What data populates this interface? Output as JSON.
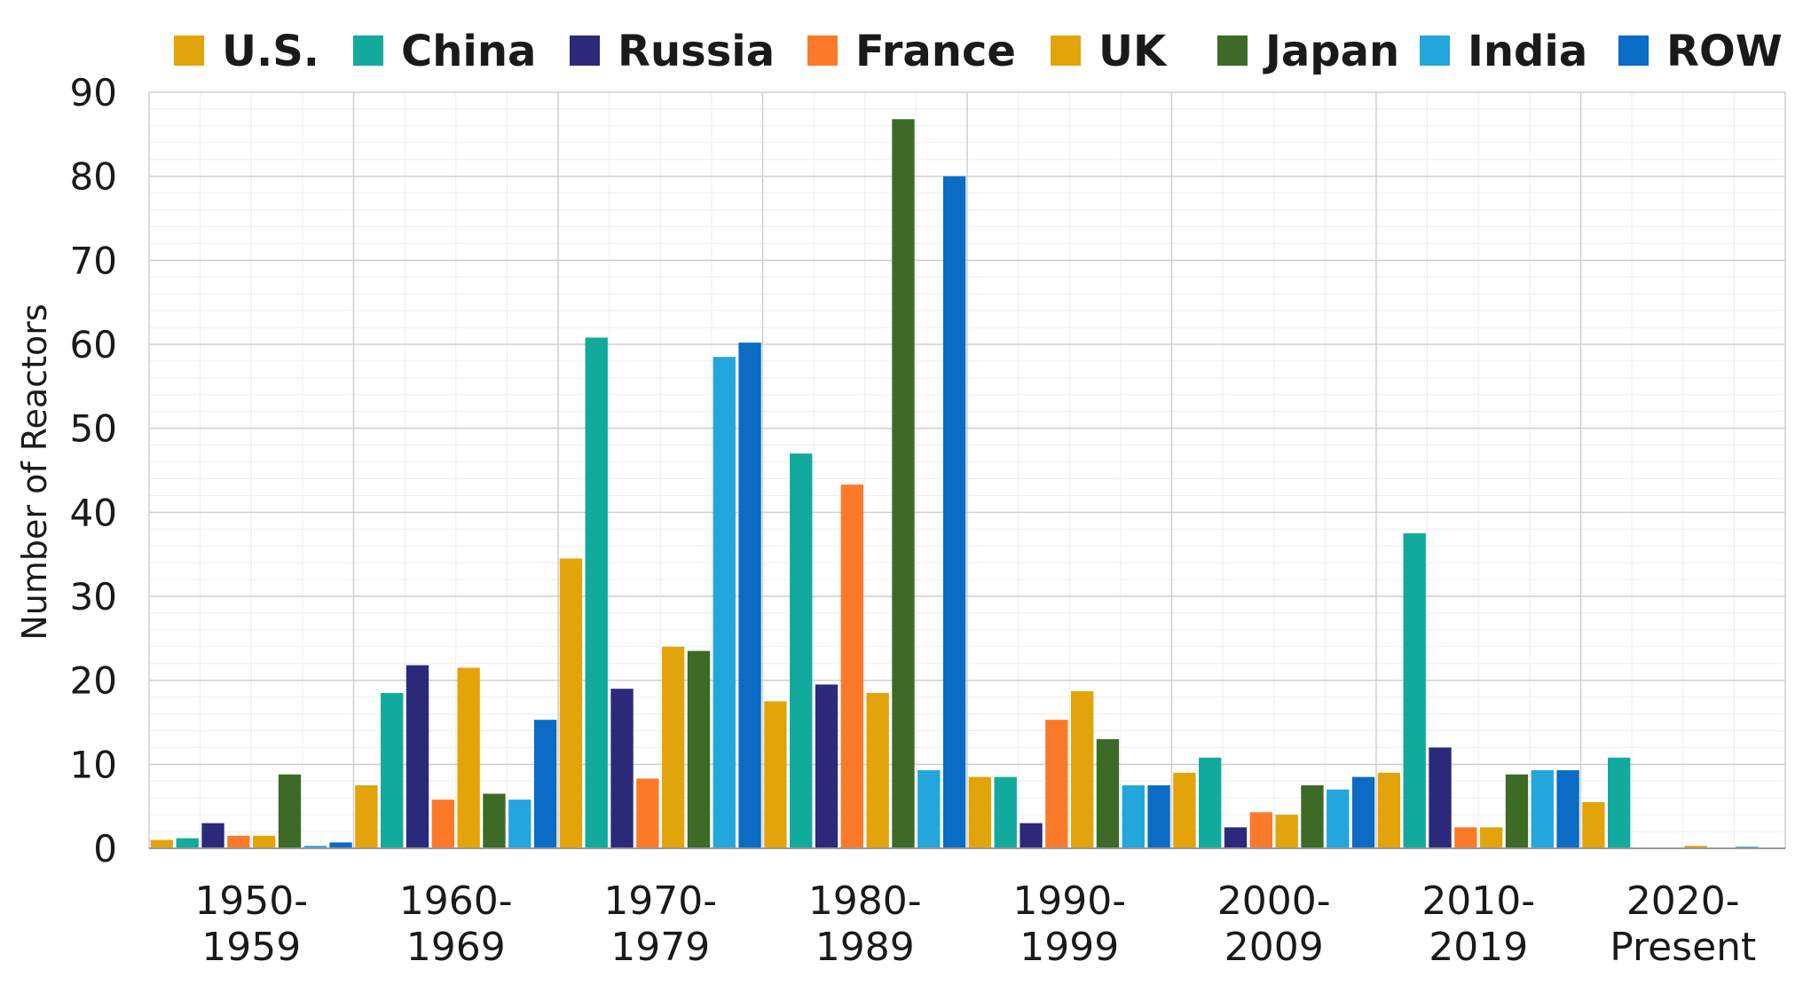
{
  "chart_data": {
    "type": "bar",
    "title": "",
    "xlabel": "",
    "ylabel": "Number of Reactors",
    "ylim": [
      0,
      90
    ],
    "yticks": [
      0,
      10,
      20,
      30,
      40,
      50,
      60,
      70,
      80,
      90
    ],
    "grid": true,
    "legend_position": "top",
    "categories": [
      [
        "1950-",
        "1959"
      ],
      [
        "1960-",
        "1969"
      ],
      [
        "1970-",
        "1979"
      ],
      [
        "1980-",
        "1989"
      ],
      [
        "1990-",
        "1999"
      ],
      [
        "2000-",
        "2009"
      ],
      [
        "2010-",
        "2019"
      ],
      [
        "2020-",
        "Present"
      ]
    ],
    "series": [
      {
        "name": "U.S.",
        "color": "#E3A30A",
        "values": [
          1,
          7.5,
          34.5,
          17.5,
          8.5,
          9,
          9,
          5.5
        ]
      },
      {
        "name": "China",
        "color": "#12AA9C",
        "values": [
          1.2,
          18.5,
          60.8,
          47,
          8.5,
          10.8,
          37.5,
          10.8
        ]
      },
      {
        "name": "Russia",
        "color": "#2B2A7A",
        "values": [
          3,
          21.8,
          19,
          19.5,
          3,
          2.5,
          12,
          0
        ]
      },
      {
        "name": "France",
        "color": "#FB7A2A",
        "values": [
          1.5,
          5.8,
          8.3,
          43.3,
          15.3,
          4.3,
          2.5,
          0
        ]
      },
      {
        "name": "UK",
        "color": "#E3A30A",
        "values": [
          1.5,
          21.5,
          24,
          18.5,
          18.7,
          4,
          2.5,
          0.3
        ]
      },
      {
        "name": "Japan",
        "color": "#3E6A27",
        "values": [
          8.8,
          6.5,
          23.5,
          86.8,
          13,
          7.5,
          8.8,
          0
        ]
      },
      {
        "name": "India",
        "color": "#23A6DC",
        "values": [
          0.3,
          5.8,
          58.5,
          9.3,
          7.5,
          7,
          9.3,
          0.2
        ]
      },
      {
        "name": "ROW",
        "color": "#0A6CC4",
        "values": [
          0.7,
          15.3,
          60.2,
          80,
          7.5,
          8.5,
          9.3,
          0.1
        ]
      }
    ]
  }
}
